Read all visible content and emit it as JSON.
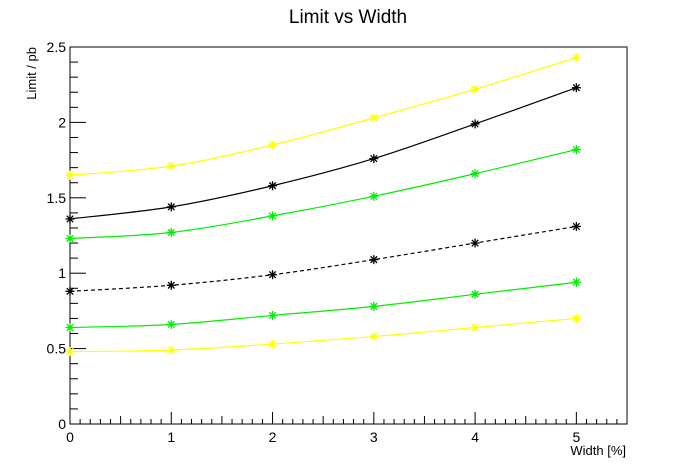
{
  "chart_data": {
    "type": "line",
    "title": "Limit vs Width",
    "xlabel": "Width [%]",
    "ylabel": "Limit / pb",
    "xlim": [
      0,
      5.5
    ],
    "ylim": [
      0,
      2.5
    ],
    "x_ticks": [
      "0",
      "1",
      "2",
      "3",
      "4",
      "5"
    ],
    "y_ticks": [
      "0",
      "0.5",
      "1",
      "1.5",
      "2",
      "2.5"
    ],
    "grid": false,
    "legend": "none",
    "x": [
      0,
      1,
      2,
      3,
      4,
      5
    ],
    "series": [
      {
        "values": [
          1.65,
          1.71,
          1.85,
          2.03,
          2.22,
          2.43
        ],
        "color": "#ffff00",
        "line": "solid"
      },
      {
        "values": [
          1.36,
          1.44,
          1.58,
          1.76,
          1.99,
          2.23
        ],
        "color": "#000000",
        "line": "solid"
      },
      {
        "values": [
          1.23,
          1.27,
          1.38,
          1.51,
          1.66,
          1.82
        ],
        "color": "#00ee00",
        "line": "solid"
      },
      {
        "values": [
          0.88,
          0.92,
          0.99,
          1.09,
          1.2,
          1.31
        ],
        "color": "#000000",
        "line": "dashed"
      },
      {
        "values": [
          0.64,
          0.66,
          0.72,
          0.78,
          0.86,
          0.94
        ],
        "color": "#00ee00",
        "line": "solid"
      },
      {
        "values": [
          0.48,
          0.49,
          0.53,
          0.58,
          0.64,
          0.7
        ],
        "color": "#ffff00",
        "line": "solid"
      }
    ]
  }
}
